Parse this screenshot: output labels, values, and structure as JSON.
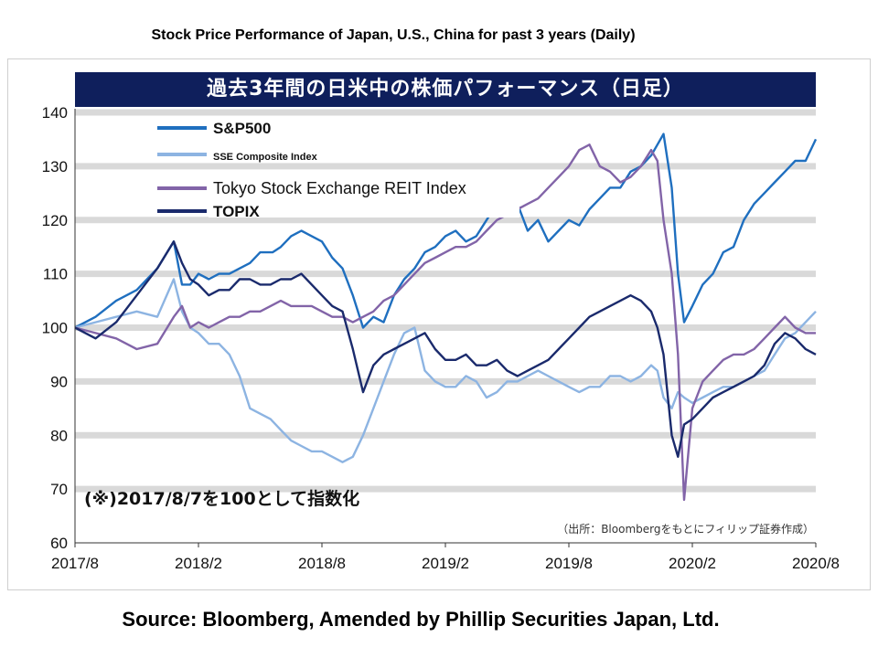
{
  "page_title": "Stock Price Performance of Japan, U.S., China for past 3 years (Daily)",
  "source": "Source: Bloomberg, Amended by Phillip Securities Japan, Ltd.",
  "chart_data": {
    "type": "line",
    "title": "過去3年間の日米中の株価パフォーマンス（日足）",
    "note": "(※)2017/8/7を100として指数化",
    "credit": "（出所：Bloombergをもとにフィリップ証券作成）",
    "xlabel": "",
    "ylabel": "",
    "ylim": [
      60,
      140
    ],
    "yticks": [
      60,
      70,
      80,
      90,
      100,
      110,
      120,
      130,
      140
    ],
    "xtick_labels": [
      "2017/8",
      "2018/2",
      "2018/8",
      "2019/2",
      "2019/8",
      "2020/2",
      "2020/8"
    ],
    "xlim": [
      0,
      36
    ],
    "grid": true,
    "legend_position": "top-left",
    "series": [
      {
        "name": "S&P500",
        "color": "#1f6fbf",
        "x": [
          0,
          1,
          2,
          3,
          4,
          4.8,
          5.2,
          5.6,
          6,
          6.5,
          7,
          7.5,
          8,
          8.5,
          9,
          9.6,
          10,
          10.5,
          11,
          11.5,
          12,
          12.5,
          13,
          13.5,
          14,
          14.5,
          15,
          15.5,
          16,
          16.5,
          17,
          17.5,
          18,
          18.5,
          19,
          19.5,
          20,
          20.5,
          21,
          21.5,
          22,
          22.5,
          23,
          23.5,
          24,
          24.5,
          25,
          25.5,
          26,
          26.5,
          27,
          27.5,
          28,
          28.3,
          28.6,
          29,
          29.3,
          29.6,
          30,
          30.5,
          31,
          31.5,
          32,
          32.5,
          33,
          33.5,
          34,
          34.5,
          35,
          35.5,
          36
        ],
        "values": [
          100,
          102,
          105,
          107,
          111,
          116,
          108,
          108,
          110,
          109,
          110,
          110,
          111,
          112,
          114,
          114,
          115,
          117,
          118,
          117,
          116,
          113,
          111,
          106,
          100,
          102,
          101,
          106,
          109,
          111,
          114,
          115,
          117,
          118,
          116,
          117,
          120,
          123,
          125,
          123,
          118,
          120,
          116,
          118,
          120,
          119,
          122,
          124,
          126,
          126,
          129,
          130,
          132,
          134,
          136,
          126,
          110,
          101,
          104,
          108,
          110,
          114,
          115,
          120,
          123,
          125,
          127,
          129,
          131,
          131,
          135
        ]
      },
      {
        "name": "SSE Composite Index",
        "color": "#8db4e2",
        "x": [
          0,
          1,
          2,
          3,
          4,
          4.8,
          5.2,
          5.6,
          6,
          6.5,
          7,
          7.5,
          8,
          8.5,
          9,
          9.5,
          10,
          10.5,
          11,
          11.5,
          12,
          12.5,
          13,
          13.5,
          14,
          14.5,
          15,
          15.5,
          16,
          16.5,
          17,
          17.5,
          18,
          18.5,
          19,
          19.5,
          20,
          20.5,
          21,
          21.5,
          22,
          22.5,
          23,
          23.5,
          24,
          24.5,
          25,
          25.5,
          26,
          26.5,
          27,
          27.5,
          28,
          28.3,
          28.6,
          29,
          29.3,
          29.6,
          30,
          30.5,
          31,
          31.5,
          32,
          32.5,
          33,
          33.5,
          34,
          34.5,
          35,
          35.5,
          36
        ],
        "values": [
          100,
          101,
          102,
          103,
          102,
          109,
          103,
          100,
          99,
          97,
          97,
          95,
          91,
          85,
          84,
          83,
          81,
          79,
          78,
          77,
          77,
          76,
          75,
          76,
          80,
          85,
          90,
          95,
          99,
          100,
          92,
          90,
          89,
          89,
          91,
          90,
          87,
          88,
          90,
          90,
          91,
          92,
          91,
          90,
          89,
          88,
          89,
          89,
          91,
          91,
          90,
          91,
          93,
          92,
          87,
          85,
          88,
          87,
          86,
          87,
          88,
          89,
          89,
          90,
          91,
          92,
          95,
          98,
          99,
          101,
          103
        ]
      },
      {
        "name": "Tokyo Stock Exchange REIT Index",
        "color": "#8264a8",
        "x": [
          0,
          1,
          2,
          3,
          4,
          4.8,
          5.2,
          5.6,
          6,
          6.5,
          7,
          7.5,
          8,
          8.5,
          9,
          9.5,
          10,
          10.5,
          11,
          11.5,
          12,
          12.5,
          13,
          13.5,
          14,
          14.5,
          15,
          15.5,
          16,
          16.5,
          17,
          17.5,
          18,
          18.5,
          19,
          19.5,
          20,
          20.5,
          21,
          21.5,
          22,
          22.5,
          23,
          23.5,
          24,
          24.5,
          25,
          25.5,
          26,
          26.5,
          27,
          27.5,
          28,
          28.3,
          28.6,
          29,
          29.3,
          29.6,
          30,
          30.5,
          31,
          31.5,
          32,
          32.5,
          33,
          33.5,
          34,
          34.5,
          35,
          35.5,
          36
        ],
        "values": [
          100,
          99,
          98,
          96,
          97,
          102,
          104,
          100,
          101,
          100,
          101,
          102,
          102,
          103,
          103,
          104,
          105,
          104,
          104,
          104,
          103,
          102,
          102,
          101,
          102,
          103,
          105,
          106,
          108,
          110,
          112,
          113,
          114,
          115,
          115,
          116,
          118,
          120,
          121,
          122,
          123,
          124,
          126,
          128,
          130,
          133,
          134,
          130,
          129,
          127,
          128,
          130,
          133,
          131,
          120,
          110,
          95,
          68,
          85,
          90,
          92,
          94,
          95,
          95,
          96,
          98,
          100,
          102,
          100,
          99,
          99
        ]
      },
      {
        "name": "TOPIX",
        "color": "#1a2a6c",
        "x": [
          0,
          1,
          2,
          3,
          4,
          4.8,
          5.2,
          5.6,
          6,
          6.5,
          7,
          7.5,
          8,
          8.5,
          9,
          9.5,
          10,
          10.5,
          11,
          11.5,
          12,
          12.5,
          13,
          13.5,
          14,
          14.5,
          15,
          15.5,
          16,
          16.5,
          17,
          17.5,
          18,
          18.5,
          19,
          19.5,
          20,
          20.5,
          21,
          21.5,
          22,
          22.5,
          23,
          23.5,
          24,
          24.5,
          25,
          25.5,
          26,
          26.5,
          27,
          27.5,
          28,
          28.3,
          28.6,
          29,
          29.3,
          29.6,
          30,
          30.5,
          31,
          31.5,
          32,
          32.5,
          33,
          33.5,
          34,
          34.5,
          35,
          35.5,
          36
        ],
        "values": [
          100,
          98,
          101,
          106,
          111,
          116,
          112,
          109,
          108,
          106,
          107,
          107,
          109,
          109,
          108,
          108,
          109,
          109,
          110,
          108,
          106,
          104,
          103,
          96,
          88,
          93,
          95,
          96,
          97,
          98,
          99,
          96,
          94,
          94,
          95,
          93,
          93,
          94,
          92,
          91,
          92,
          93,
          94,
          96,
          98,
          100,
          102,
          103,
          104,
          105,
          106,
          105,
          103,
          100,
          95,
          80,
          76,
          82,
          83,
          85,
          87,
          88,
          89,
          90,
          91,
          93,
          97,
          99,
          98,
          96,
          95
        ]
      }
    ]
  }
}
